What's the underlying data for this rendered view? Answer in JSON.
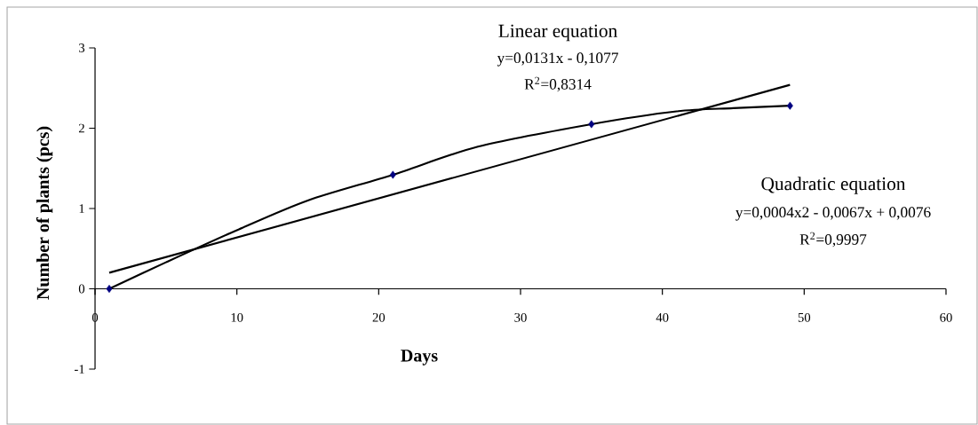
{
  "chart_data": {
    "type": "scatter",
    "xlabel": "Days",
    "ylabel": "Number of plants (pcs)",
    "xlim": [
      0,
      60
    ],
    "ylim": [
      -1,
      3
    ],
    "xticks": [
      0,
      10,
      20,
      30,
      40,
      50,
      60
    ],
    "yticks": [
      -1,
      0,
      1,
      2,
      3
    ],
    "series": [
      {
        "type": "line",
        "color": "#000000",
        "marker": "none",
        "x": [
          1,
          49
        ],
        "values": [
          0.2,
          2.54
        ]
      },
      {
        "type": "line",
        "color": "#000000",
        "marker": "none",
        "x": [
          1,
          5,
          10,
          15,
          21,
          27,
          35,
          41,
          45,
          49
        ],
        "values": [
          0,
          0.33,
          0.73,
          1.1,
          1.42,
          1.77,
          2.05,
          2.21,
          2.25,
          2.28
        ]
      },
      {
        "color": "#000080",
        "marker": "diamond",
        "x": [
          1,
          21,
          35,
          49
        ],
        "values": [
          0,
          1.42,
          2.05,
          2.28
        ]
      }
    ],
    "annotations": [
      "Linear equation",
      "y=0,0131x - 0,1077",
      "R$^{2}$=0,8314",
      "Quadratic equation",
      "y=0,0004x2 - 0,0067x + 0,0076",
      "R$^{2}$=0,9997"
    ]
  }
}
